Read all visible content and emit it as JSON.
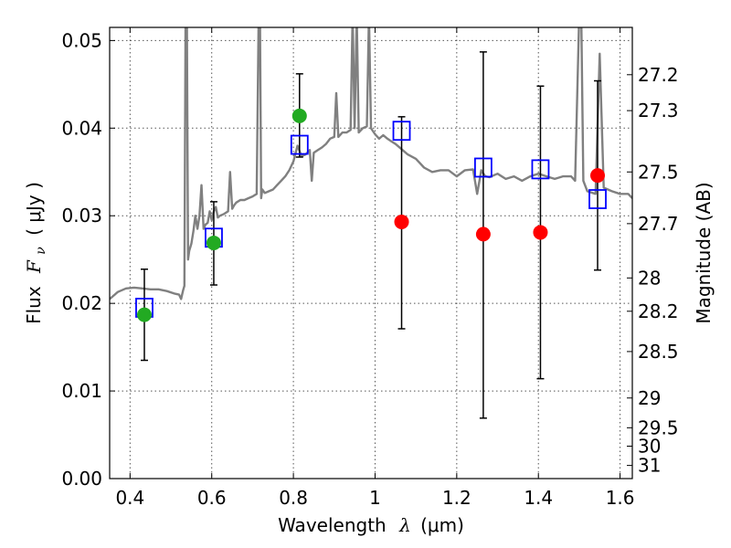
{
  "chart_data": {
    "type": "scatter",
    "xlabel": {
      "text": "Wavelength",
      "symbol": "λ",
      "unit": "(μm)"
    },
    "ylabel": {
      "text": "Flux",
      "symbol": "F",
      "subscript": "ν",
      "unit": "( μJy )"
    },
    "y2label": "Magnitude (AB)",
    "xlim": [
      0.35,
      1.63
    ],
    "ylim": [
      0.0,
      0.0515
    ],
    "grid": true,
    "x_ticks": [
      0.4,
      0.6,
      0.8,
      1.0,
      1.2,
      1.4,
      1.6
    ],
    "x_tick_labels": [
      "0.4",
      "0.6",
      "0.8",
      "1",
      "1.2",
      "1.4",
      "1.6"
    ],
    "y_ticks": [
      0.0,
      0.01,
      0.02,
      0.03,
      0.04,
      0.05
    ],
    "y_tick_labels": [
      "0.00",
      "0.01",
      "0.02",
      "0.03",
      "0.04",
      "0.05"
    ],
    "y2_tick_labels": [
      "27.2",
      "27.3",
      "27.5",
      "27.7",
      "28",
      "28.2",
      "28.5",
      "29",
      "29.5",
      "30",
      "31"
    ],
    "y2_tick_flux": [
      0.0461,
      0.042,
      0.035,
      0.0291,
      0.0229,
      0.0191,
      0.0145,
      0.0092,
      0.0058,
      0.0037,
      0.0015
    ],
    "colors": {
      "model": "#808080",
      "box": "#0000ff",
      "green": "#22aa22",
      "red": "#ff0000",
      "error": "#000000"
    },
    "series": [
      {
        "kind": "line",
        "color": "#808080",
        "x": [
          0.35,
          0.37,
          0.39,
          0.41,
          0.43,
          0.45,
          0.47,
          0.49,
          0.51,
          0.52,
          0.525,
          0.53,
          0.533,
          0.536,
          0.539,
          0.542,
          0.545,
          0.55,
          0.555,
          0.56,
          0.565,
          0.57,
          0.575,
          0.58,
          0.585,
          0.59,
          0.595,
          0.6,
          0.605,
          0.61,
          0.615,
          0.62,
          0.63,
          0.64,
          0.645,
          0.65,
          0.655,
          0.66,
          0.67,
          0.68,
          0.69,
          0.7,
          0.71,
          0.715,
          0.718,
          0.721,
          0.724,
          0.73,
          0.74,
          0.75,
          0.76,
          0.77,
          0.78,
          0.79,
          0.8,
          0.81,
          0.82,
          0.83,
          0.84,
          0.845,
          0.85,
          0.86,
          0.87,
          0.88,
          0.89,
          0.9,
          0.905,
          0.91,
          0.92,
          0.93,
          0.94,
          0.945,
          0.95,
          0.955,
          0.96,
          0.97,
          0.98,
          0.985,
          0.99,
          1.0,
          1.01,
          1.02,
          1.03,
          1.04,
          1.05,
          1.06,
          1.08,
          1.1,
          1.12,
          1.14,
          1.16,
          1.18,
          1.2,
          1.22,
          1.24,
          1.25,
          1.26,
          1.27,
          1.28,
          1.3,
          1.32,
          1.34,
          1.36,
          1.38,
          1.4,
          1.42,
          1.44,
          1.46,
          1.48,
          1.49,
          1.5,
          1.505,
          1.51,
          1.52,
          1.54,
          1.55,
          1.56,
          1.58,
          1.6,
          1.62,
          1.63
        ],
        "y": [
          0.0205,
          0.0213,
          0.0217,
          0.0218,
          0.0217,
          0.0216,
          0.0216,
          0.0214,
          0.0211,
          0.021,
          0.0205,
          0.0215,
          0.022,
          0.053,
          0.053,
          0.025,
          0.026,
          0.0268,
          0.0282,
          0.03,
          0.0285,
          0.03,
          0.0335,
          0.0285,
          0.029,
          0.0292,
          0.0305,
          0.0295,
          0.0305,
          0.031,
          0.0298,
          0.03,
          0.0302,
          0.0305,
          0.035,
          0.0308,
          0.0312,
          0.0315,
          0.0318,
          0.0318,
          0.032,
          0.0322,
          0.0325,
          0.053,
          0.053,
          0.032,
          0.033,
          0.0326,
          0.0328,
          0.033,
          0.0335,
          0.034,
          0.0345,
          0.0352,
          0.0362,
          0.038,
          0.0368,
          0.037,
          0.0375,
          0.034,
          0.0372,
          0.0375,
          0.0378,
          0.0382,
          0.0388,
          0.039,
          0.044,
          0.039,
          0.0395,
          0.0395,
          0.0398,
          0.053,
          0.04,
          0.053,
          0.0395,
          0.04,
          0.0402,
          0.053,
          0.04,
          0.0393,
          0.0388,
          0.0392,
          0.0388,
          0.0385,
          0.0382,
          0.0378,
          0.037,
          0.0365,
          0.0355,
          0.035,
          0.0352,
          0.0352,
          0.0345,
          0.0352,
          0.0353,
          0.0325,
          0.0352,
          0.0345,
          0.0344,
          0.0348,
          0.0342,
          0.0345,
          0.034,
          0.0345,
          0.0348,
          0.0345,
          0.0342,
          0.0345,
          0.0345,
          0.034,
          0.053,
          0.053,
          0.034,
          0.0328,
          0.0325,
          0.0485,
          0.0332,
          0.0328,
          0.0325,
          0.0325,
          0.032
        ]
      },
      {
        "kind": "box",
        "name": "",
        "color": "#0000ff",
        "x": [
          0.435,
          0.605,
          0.815,
          1.065,
          1.265,
          1.405,
          1.545
        ],
        "y": [
          0.0195,
          0.0275,
          0.0381,
          0.0397,
          0.0355,
          0.0353,
          0.0319
        ]
      },
      {
        "kind": "circle",
        "name": "",
        "color": "#22aa22",
        "x": [
          0.435,
          0.605,
          0.815
        ],
        "y": [
          0.0187,
          0.0269,
          0.0414
        ]
      },
      {
        "kind": "circle",
        "name": "",
        "color": "#ff0000",
        "x": [
          1.065,
          1.265,
          1.405,
          1.545
        ],
        "y": [
          0.0293,
          0.0279,
          0.0281,
          0.0346
        ]
      },
      {
        "kind": "errorbar",
        "color": "#000000",
        "x": [
          0.435,
          0.605,
          0.815,
          1.065,
          1.265,
          1.405,
          1.545
        ],
        "y_low": [
          0.0135,
          0.0221,
          0.0367,
          0.0171,
          0.0069,
          0.0114,
          0.0238
        ],
        "y_high": [
          0.0239,
          0.0316,
          0.0462,
          0.0413,
          0.0487,
          0.0448,
          0.0454
        ]
      }
    ]
  }
}
